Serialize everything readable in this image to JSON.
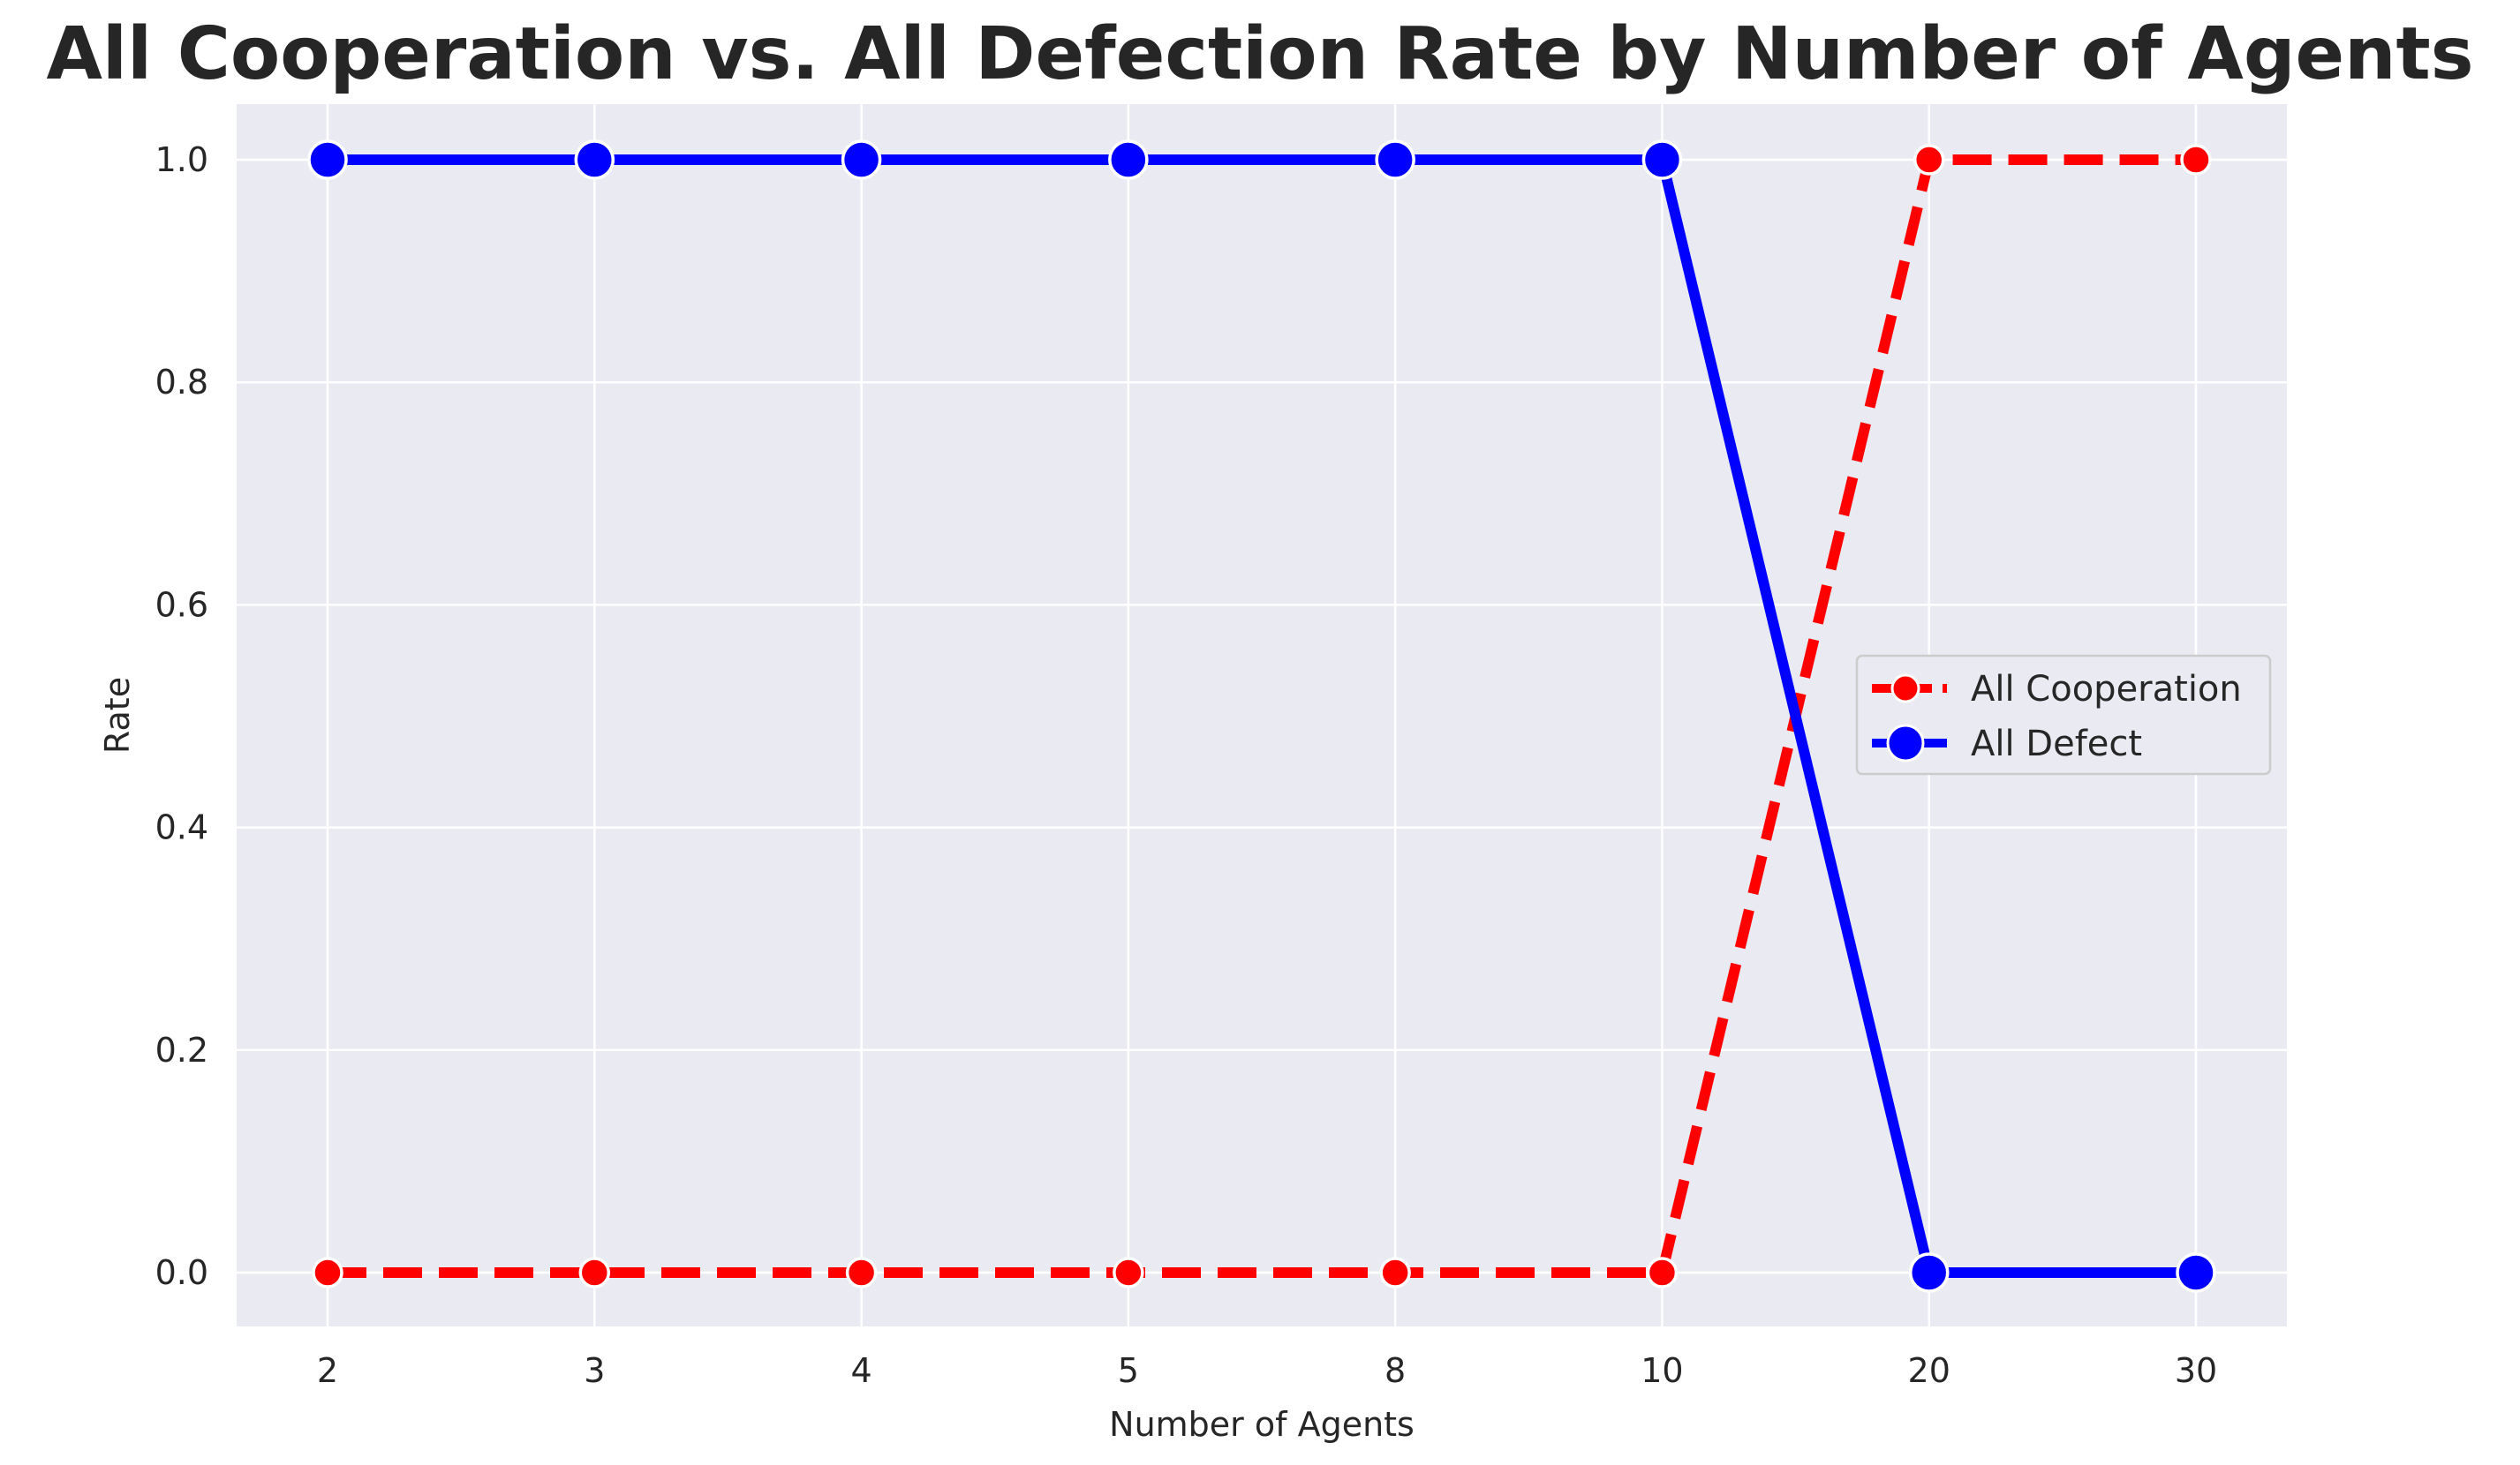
{
  "chart_data": {
    "type": "line",
    "title": "All Cooperation vs. All Defection Rate by Number of Agents",
    "xlabel": "Number of Agents",
    "ylabel": "Rate",
    "categories": [
      "2",
      "3",
      "4",
      "5",
      "8",
      "10",
      "20",
      "30"
    ],
    "yticks": [
      "0.0",
      "0.2",
      "0.4",
      "0.6",
      "0.8",
      "1.0"
    ],
    "ylim": [
      -0.05,
      1.05
    ],
    "grid": true,
    "legend_position": "center-right",
    "background_color": "#eaeaf2",
    "series": [
      {
        "name": "All Cooperation",
        "color": "#ff0000",
        "line_style": "dashed",
        "values": [
          0,
          0,
          0,
          0,
          0,
          0,
          1,
          1
        ]
      },
      {
        "name": "All Defect",
        "color": "#0000ff",
        "line_style": "solid",
        "values": [
          1,
          1,
          1,
          1,
          1,
          1,
          0,
          0
        ]
      }
    ]
  }
}
